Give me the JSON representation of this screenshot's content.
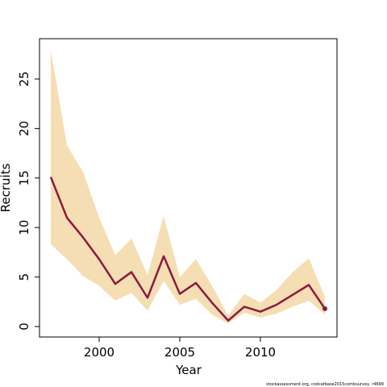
{
  "chart_data": {
    "type": "line",
    "xlabel": "Year",
    "ylabel": "Recruits",
    "footer": "stockassessment.org, codcatbase2015combsurvey, r4699",
    "x": [
      1997,
      1998,
      1999,
      2000,
      2001,
      2002,
      2003,
      2004,
      2005,
      2006,
      2007,
      2008,
      2009,
      2010,
      2011,
      2012,
      2013,
      2014
    ],
    "values": [
      15.1,
      11.0,
      9.0,
      6.8,
      4.3,
      5.5,
      2.9,
      7.1,
      3.3,
      4.4,
      2.4,
      0.6,
      2.0,
      1.5,
      2.2,
      3.2,
      4.2,
      1.8
    ],
    "upper": [
      27.9,
      18.3,
      15.6,
      11.0,
      7.2,
      8.9,
      5.2,
      11.2,
      5.0,
      6.8,
      4.1,
      1.1,
      3.3,
      2.4,
      3.7,
      5.5,
      6.9,
      3.0
    ],
    "lower": [
      8.3,
      6.8,
      5.1,
      4.1,
      2.6,
      3.4,
      1.6,
      4.6,
      2.2,
      2.8,
      1.2,
      0.3,
      1.4,
      0.9,
      1.3,
      2.0,
      2.6,
      1.2
    ],
    "color": "#8b1a3e",
    "band_color": "#f5deb3",
    "xlim": [
      1996.3,
      2014.75
    ],
    "ylim": [
      -1.06,
      29.07
    ],
    "xticks": [
      2000,
      2005,
      2010
    ],
    "yticks": [
      0,
      5,
      10,
      15,
      20,
      25
    ]
  }
}
